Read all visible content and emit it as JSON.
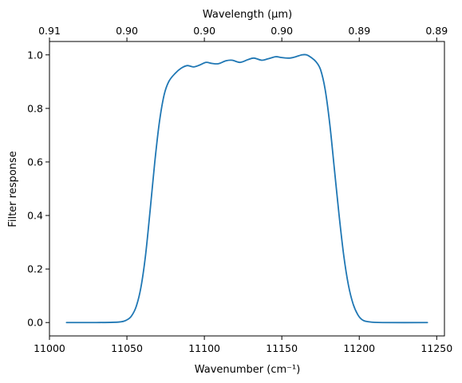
{
  "chart_data": {
    "type": "line",
    "xlabel": "Wavenumber (cm⁻¹)",
    "ylabel": "Filter response",
    "top_xlabel": "Wavelength (μm)",
    "xlim": [
      11000,
      11255
    ],
    "ylim": [
      -0.05,
      1.05
    ],
    "x_ticks": [
      11000,
      11050,
      11100,
      11150,
      11200,
      11250
    ],
    "x_tick_labels": [
      "11000",
      "11050",
      "11100",
      "11150",
      "11200",
      "11250"
    ],
    "y_ticks": [
      0.0,
      0.2,
      0.4,
      0.6,
      0.8,
      1.0
    ],
    "y_tick_labels": [
      "0.0",
      "0.2",
      "0.4",
      "0.6",
      "0.8",
      "1.0"
    ],
    "top_ticks": [
      11000,
      11050,
      11100,
      11150,
      11200,
      11250
    ],
    "top_tick_labels": [
      "0.91",
      "0.90",
      "0.90",
      "0.90",
      "0.89",
      "0.89"
    ],
    "grid": false,
    "legend": "none",
    "series": [
      {
        "color": "#1f77b4",
        "points": [
          [
            11011,
            0.0
          ],
          [
            11030,
            0.0
          ],
          [
            11045,
            0.002
          ],
          [
            11050,
            0.01
          ],
          [
            11053,
            0.025
          ],
          [
            11056,
            0.06
          ],
          [
            11059,
            0.13
          ],
          [
            11062,
            0.25
          ],
          [
            11065,
            0.42
          ],
          [
            11068,
            0.6
          ],
          [
            11071,
            0.75
          ],
          [
            11074,
            0.85
          ],
          [
            11077,
            0.9
          ],
          [
            11081,
            0.93
          ],
          [
            11085,
            0.95
          ],
          [
            11089,
            0.96
          ],
          [
            11093,
            0.955
          ],
          [
            11097,
            0.962
          ],
          [
            11101,
            0.972
          ],
          [
            11105,
            0.968
          ],
          [
            11109,
            0.967
          ],
          [
            11114,
            0.978
          ],
          [
            11118,
            0.98
          ],
          [
            11123,
            0.972
          ],
          [
            11128,
            0.982
          ],
          [
            11132,
            0.988
          ],
          [
            11137,
            0.98
          ],
          [
            11141,
            0.985
          ],
          [
            11146,
            0.993
          ],
          [
            11150,
            0.99
          ],
          [
            11155,
            0.988
          ],
          [
            11159,
            0.993
          ],
          [
            11163,
            1.0
          ],
          [
            11166,
            1.0
          ],
          [
            11169,
            0.99
          ],
          [
            11172,
            0.975
          ],
          [
            11175,
            0.945
          ],
          [
            11178,
            0.87
          ],
          [
            11181,
            0.74
          ],
          [
            11184,
            0.57
          ],
          [
            11187,
            0.4
          ],
          [
            11190,
            0.25
          ],
          [
            11193,
            0.14
          ],
          [
            11196,
            0.07
          ],
          [
            11199,
            0.03
          ],
          [
            11202,
            0.01
          ],
          [
            11206,
            0.003
          ],
          [
            11215,
            0.0
          ],
          [
            11244,
            0.0
          ]
        ]
      }
    ]
  }
}
